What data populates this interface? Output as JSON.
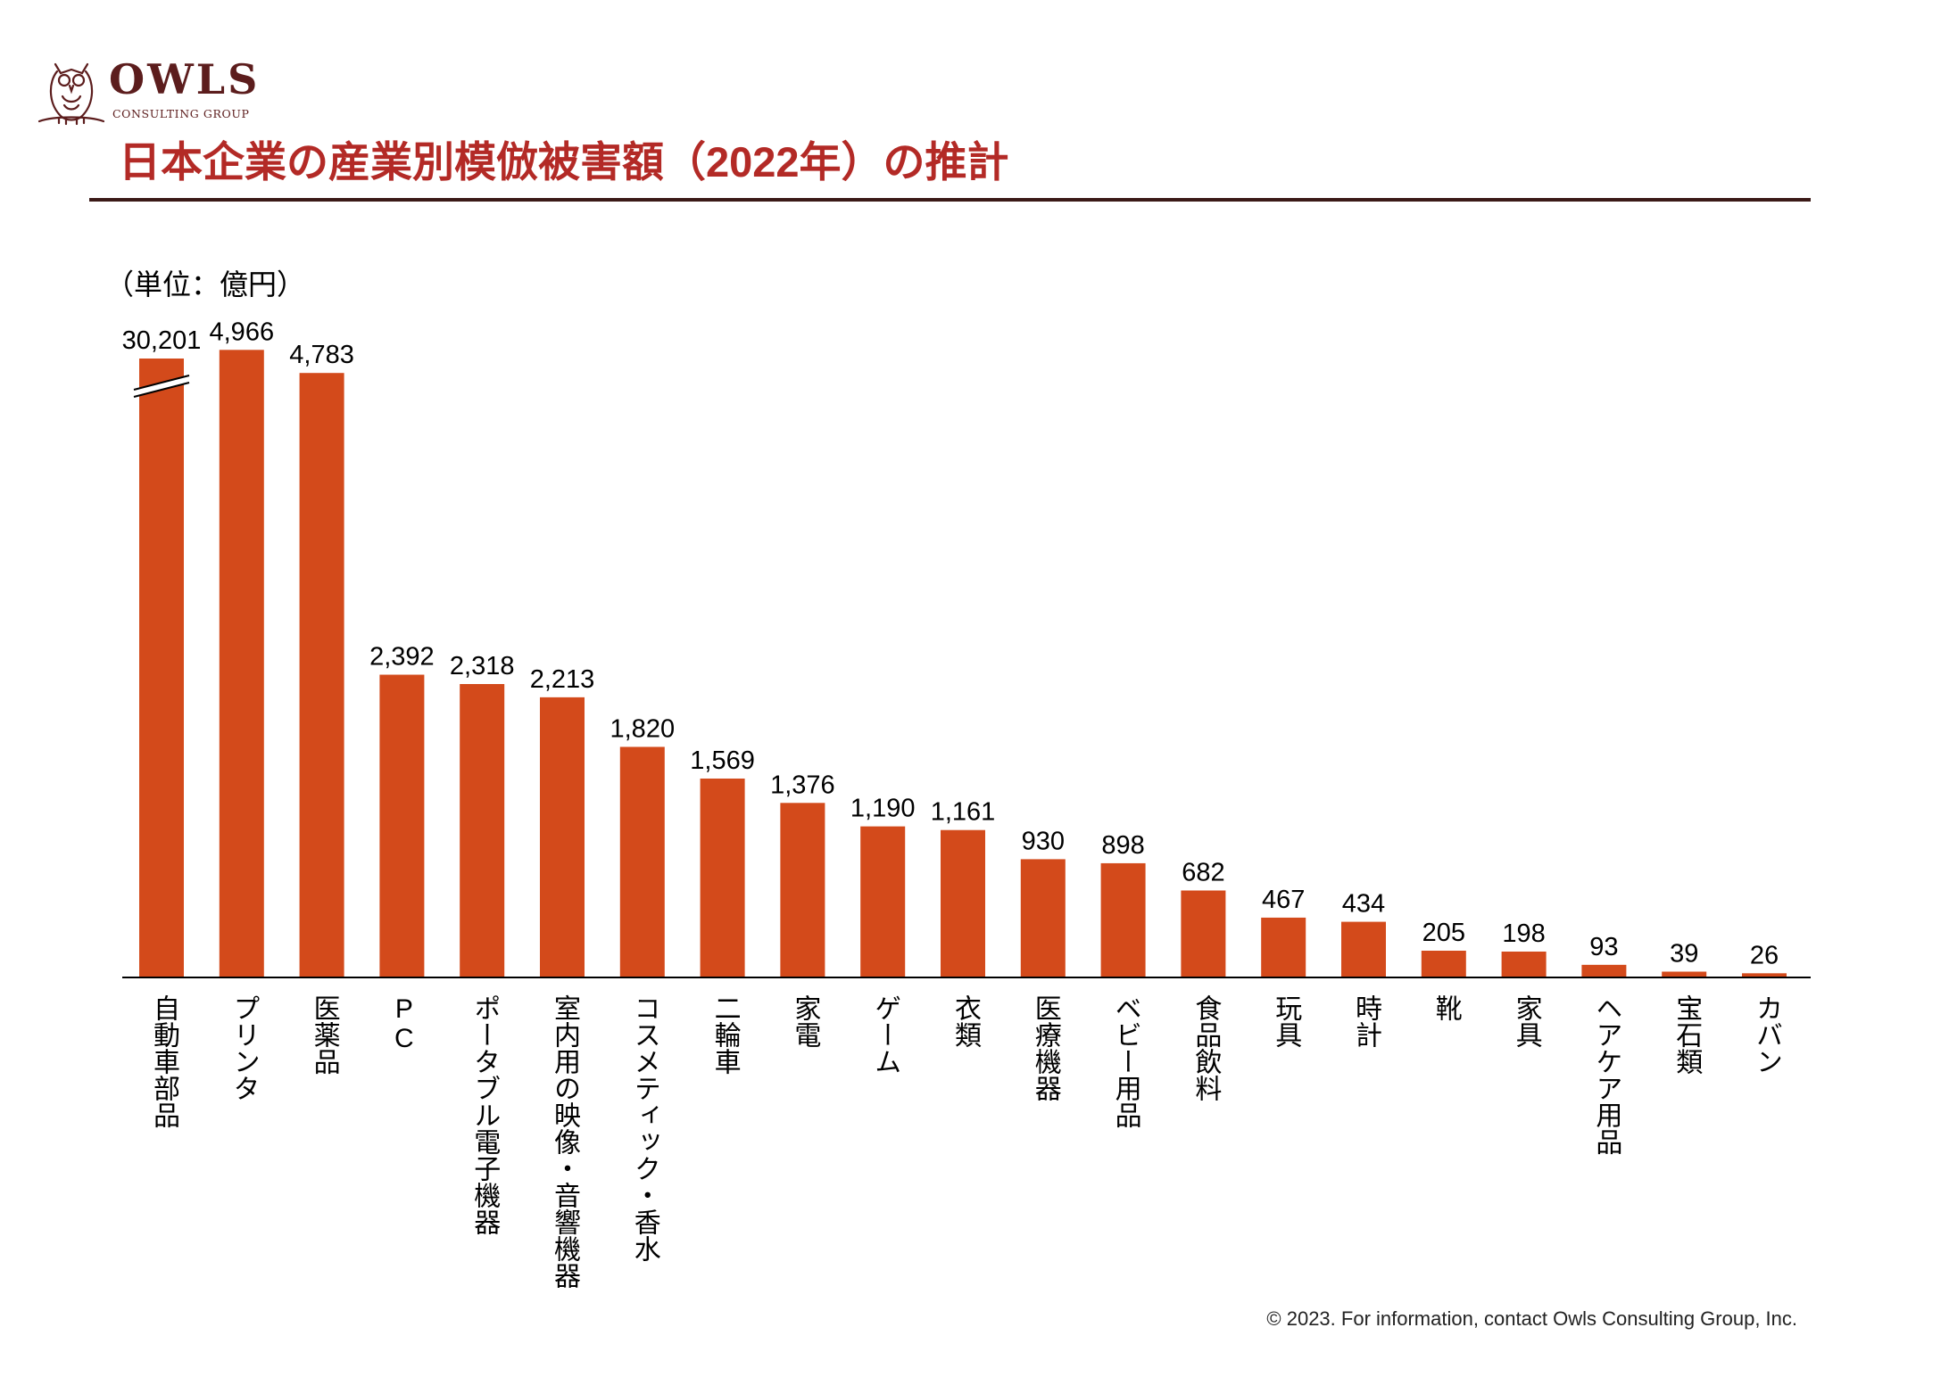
{
  "brand": {
    "name": "OWLS",
    "tagline": "CONSULTING GROUP",
    "color": "#5c1d1d"
  },
  "title": "日本企業の産業別模倣被害額（2022年）の推計",
  "unit_label": "（単位：億円）",
  "footer": "© 2023. For information, contact Owls Consulting Group, Inc.",
  "colors": {
    "bar": "#d34a1b",
    "title": "#b32a26",
    "rule": "#3b1a17"
  },
  "chart_data": {
    "type": "bar",
    "title": "日本企業の産業別模倣被害額（2022年）の推計",
    "ylabel": "（単位：億円）",
    "ylim": [
      0,
      5200
    ],
    "axis_break_on_first_bar": true,
    "grid": false,
    "categories": [
      "自動車部品",
      "プリンタ",
      "医薬品",
      "PC",
      "ポータブル電子機器",
      "室内用の映像・音響機器",
      "コスメティック・香水",
      "二輪車",
      "家電",
      "ゲーム",
      "衣類",
      "医療機器",
      "ベビー用品",
      "食品飲料",
      "玩具",
      "時計",
      "靴",
      "家具",
      "ヘアケア用品",
      "宝石類",
      "カバン"
    ],
    "values": [
      30201,
      4966,
      4783,
      2392,
      2318,
      2213,
      1820,
      1569,
      1376,
      1190,
      1161,
      930,
      898,
      682,
      467,
      434,
      205,
      198,
      93,
      39,
      26
    ],
    "value_labels": [
      "30,201",
      "4,966",
      "4,783",
      "2,392",
      "2,318",
      "2,213",
      "1,820",
      "1,569",
      "1,376",
      "1,190",
      "1,161",
      "930",
      "898",
      "682",
      "467",
      "434",
      "205",
      "198",
      "93",
      "39",
      "26"
    ]
  }
}
